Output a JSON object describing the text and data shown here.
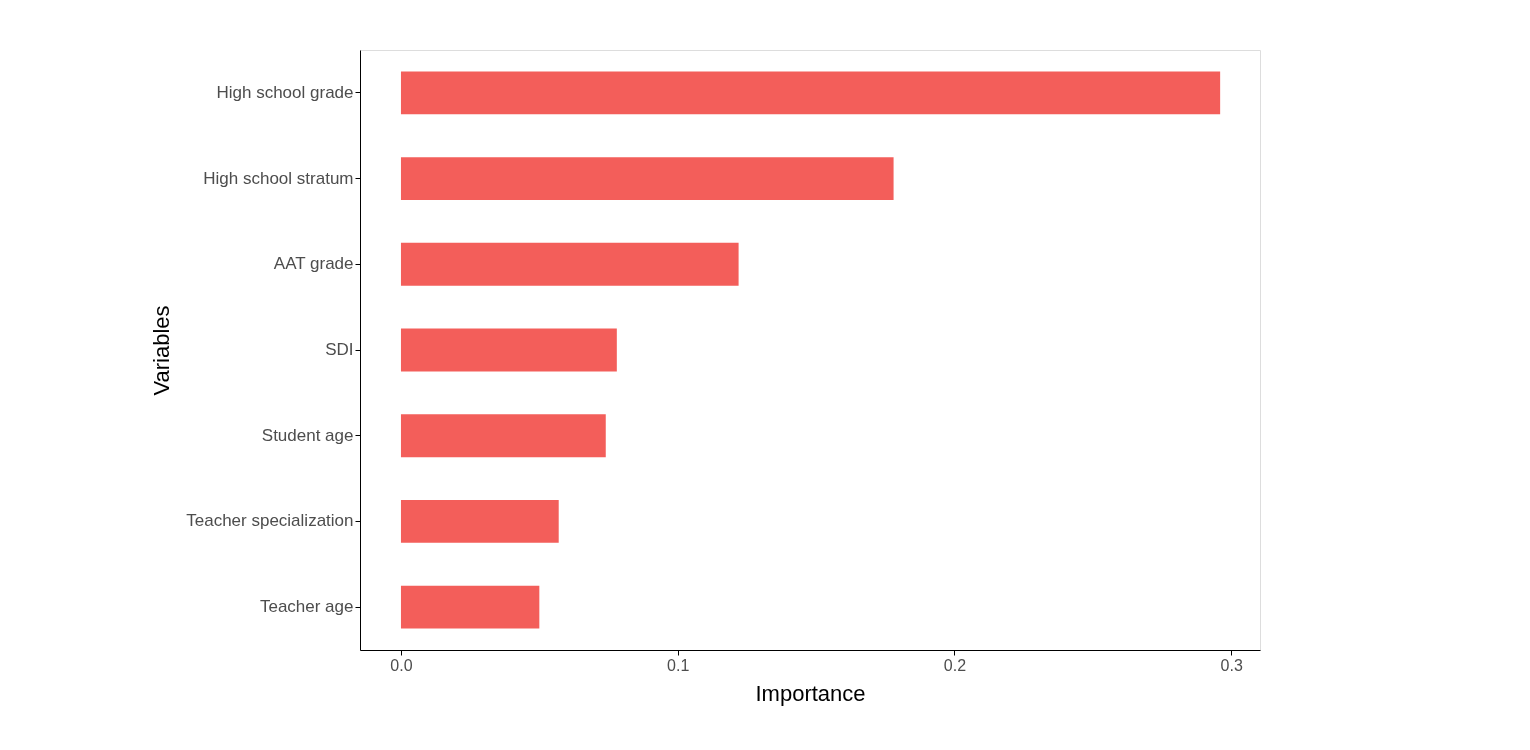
{
  "chart_data": {
    "type": "bar",
    "orientation": "horizontal",
    "xlabel": "Importance",
    "ylabel": "Variables",
    "categories": [
      "High school grade",
      "High school stratum",
      "AAT grade",
      "SDI",
      "Student age",
      "Teacher specialization",
      "Teacher age"
    ],
    "values": [
      0.296,
      0.178,
      0.122,
      0.078,
      0.074,
      0.057,
      0.05
    ],
    "color": "#f35e5a",
    "xlim": [
      -0.0148,
      0.3104
    ],
    "xticks": [
      {
        "value": 0,
        "label": "0.0"
      },
      0.1,
      0.2,
      0.3
    ],
    "grid": false
  }
}
